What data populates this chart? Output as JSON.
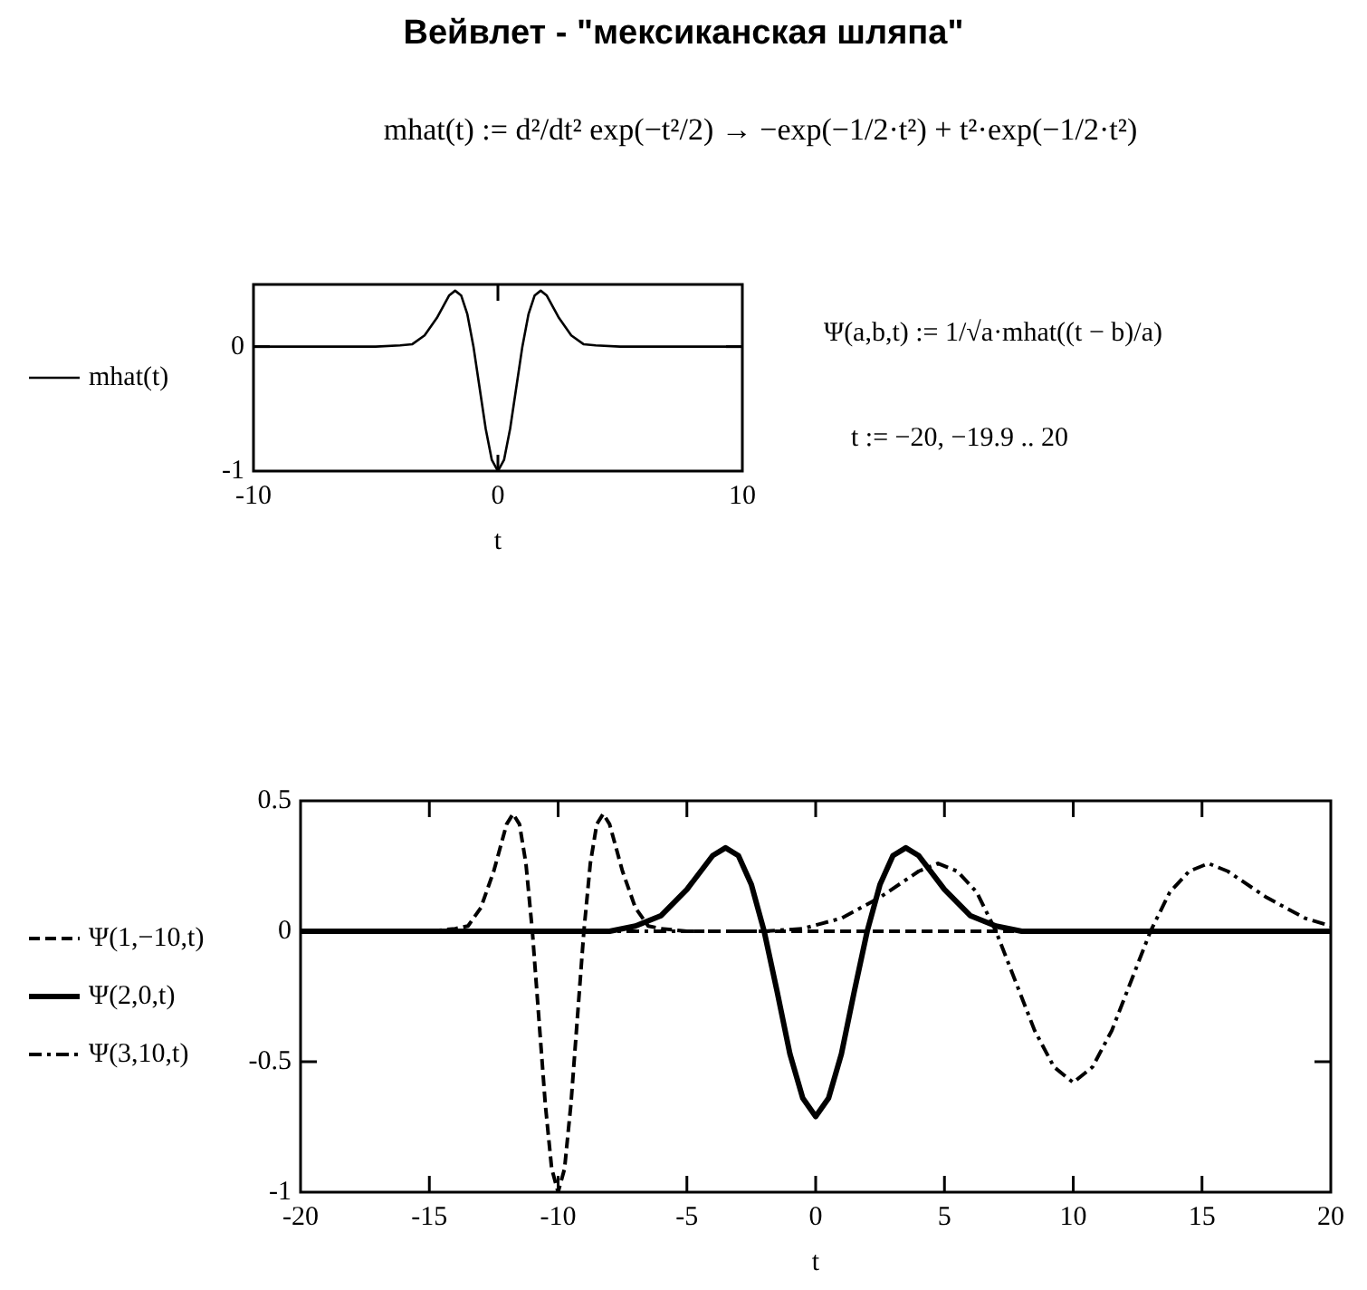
{
  "chart_data": [
    {
      "type": "line",
      "title": "Вейвлет - \"мексиканская шляпа\"",
      "annotations": [
        "mhat(t) := d²/dt² exp(−t²/2) → −exp(−1/2·t²) + t²·exp(−1/2·t²)",
        "Ψ(a,b,t) := 1/√a·mhat((t − b)/a)",
        "t := −20, −19.9 .. 20"
      ],
      "xlabel": "t",
      "xlim": [
        -10,
        10
      ],
      "xticks": [
        -10,
        0,
        10
      ],
      "ylim": [
        -1,
        0.5
      ],
      "yticks": [
        0,
        -1
      ],
      "legend": "left",
      "grid": false,
      "marker": "none",
      "series": [
        {
          "name": "mhat(t)",
          "color": "#000000",
          "line_style": "solid",
          "x": [
            -10,
            -5,
            -4,
            -3.5,
            -3,
            -2.5,
            -2,
            -1.75,
            -1.5,
            -1.25,
            -1,
            -0.75,
            -0.5,
            -0.25,
            0,
            0.25,
            0.5,
            0.75,
            1,
            1.25,
            1.5,
            1.75,
            2,
            2.5,
            3,
            3.5,
            4,
            5,
            10
          ],
          "values": [
            0,
            0,
            0.01,
            0.02,
            0.09,
            0.23,
            0.41,
            0.45,
            0.41,
            0.26,
            0,
            -0.33,
            -0.66,
            -0.91,
            -1,
            -0.91,
            -0.66,
            -0.33,
            0,
            0.26,
            0.41,
            0.45,
            0.41,
            0.23,
            0.09,
            0.02,
            0.01,
            0,
            0
          ]
        }
      ]
    },
    {
      "type": "line",
      "xlabel": "t",
      "xlim": [
        -20,
        20
      ],
      "xticks": [
        -20,
        -15,
        -10,
        -5,
        0,
        5,
        10,
        15,
        20
      ],
      "ylim": [
        -1,
        0.5
      ],
      "yticks": [
        0.5,
        0,
        -0.5,
        -1
      ],
      "legend": "left",
      "grid": false,
      "marker": "none",
      "series": [
        {
          "name": "Ψ(1,−10,t)",
          "color": "#000000",
          "line_style": "dashed",
          "x": [
            -20,
            -15,
            -14,
            -13.5,
            -13,
            -12.5,
            -12,
            -11.75,
            -11.5,
            -11.25,
            -11,
            -10.75,
            -10.5,
            -10.25,
            -10,
            -9.75,
            -9.5,
            -9.25,
            -9,
            -8.75,
            -8.5,
            -8.25,
            -8,
            -7.5,
            -7,
            -6.5,
            -6,
            -5,
            20
          ],
          "values": [
            0,
            0,
            0.01,
            0.02,
            0.09,
            0.23,
            0.41,
            0.45,
            0.41,
            0.26,
            0,
            -0.33,
            -0.66,
            -0.91,
            -1,
            -0.91,
            -0.66,
            -0.33,
            0,
            0.26,
            0.41,
            0.45,
            0.41,
            0.23,
            0.09,
            0.02,
            0.01,
            0,
            0
          ]
        },
        {
          "name": "Ψ(2,0,t)",
          "color": "#000000",
          "line_style": "solid",
          "x": [
            -20,
            -8,
            -7,
            -6,
            -5,
            -4,
            -3.5,
            -3,
            -2.5,
            -2,
            -1.5,
            -1,
            -0.5,
            0,
            0.5,
            1,
            1.5,
            2,
            2.5,
            3,
            3.5,
            4,
            5,
            6,
            7,
            8,
            20
          ],
          "values": [
            0,
            0,
            0.02,
            0.06,
            0.16,
            0.29,
            0.32,
            0.29,
            0.18,
            0,
            -0.23,
            -0.47,
            -0.64,
            -0.71,
            -0.64,
            -0.47,
            -0.23,
            0,
            0.18,
            0.29,
            0.32,
            0.29,
            0.16,
            0.06,
            0.02,
            0,
            0
          ]
        },
        {
          "name": "Ψ(3,10,t)",
          "color": "#000000",
          "line_style": "dashdot",
          "x": [
            -20,
            -2,
            -0.5,
            1,
            2.5,
            4,
            4.75,
            5.5,
            6.25,
            7,
            7.75,
            8.5,
            9.25,
            10,
            10.75,
            11.5,
            12.25,
            13,
            13.75,
            14.5,
            15.25,
            16,
            17.5,
            19,
            20
          ],
          "values": [
            0,
            0,
            0.01,
            0.05,
            0.13,
            0.23,
            0.26,
            0.23,
            0.15,
            0,
            -0.19,
            -0.38,
            -0.52,
            -0.58,
            -0.52,
            -0.38,
            -0.19,
            0,
            0.15,
            0.23,
            0.26,
            0.23,
            0.13,
            0.05,
            0.02
          ]
        }
      ]
    }
  ]
}
